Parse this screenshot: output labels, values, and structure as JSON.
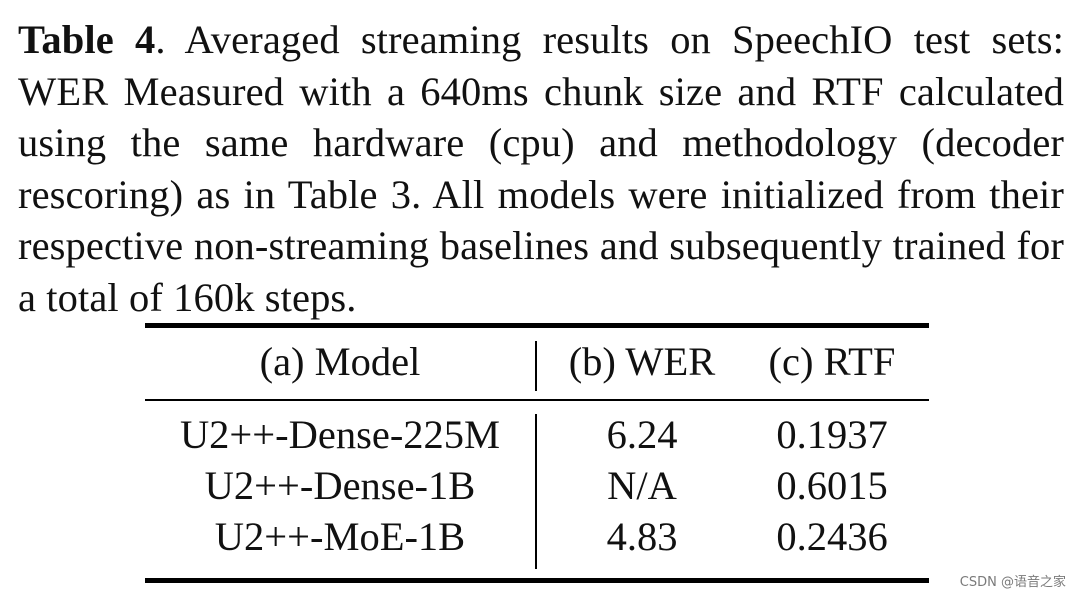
{
  "caption": {
    "label": "Table 4",
    "text": ".  Averaged streaming results on SpeechIO test sets: WER Measured with a 640ms chunk size and RTF calculated using the same hardware (cpu) and methodology (decoder rescoring) as in Table 3.  All models were initialized from their respective non-streaming baselines and subsequently trained for a total of 160k steps."
  },
  "table": {
    "headers": {
      "model": "(a) Model",
      "wer": "(b) WER",
      "rtf": "(c) RTF"
    },
    "rows": [
      {
        "model": "U2++-Dense-225M",
        "wer": "6.24",
        "rtf": "0.1937"
      },
      {
        "model": "U2++-Dense-1B",
        "wer": "N/A",
        "rtf": "0.6015"
      },
      {
        "model": "U2++-MoE-1B",
        "wer": "4.83",
        "rtf": "0.2436"
      }
    ]
  },
  "watermark": "CSDN @语音之家"
}
